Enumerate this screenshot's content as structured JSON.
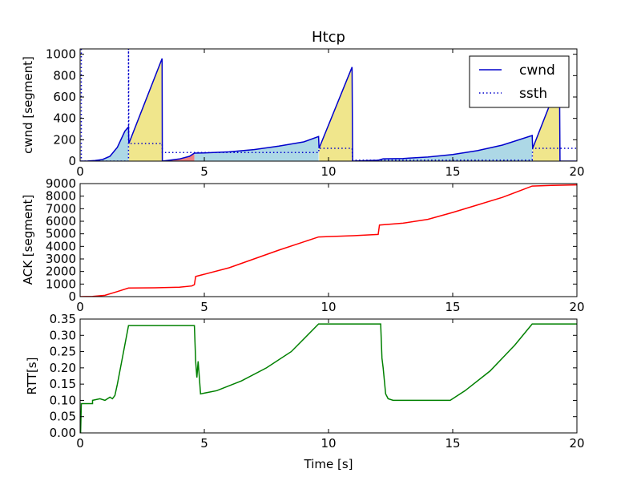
{
  "chart_data": [
    {
      "type": "line",
      "title": "Htcp",
      "ylabel": "cwnd [segment]",
      "xlabel": "",
      "xlim": [
        0,
        20
      ],
      "ylim": [
        0,
        1050
      ],
      "xticks": [
        0,
        5,
        10,
        15,
        20
      ],
      "yticks": [
        0,
        200,
        400,
        600,
        800,
        1000
      ],
      "legend": {
        "position": "top-right",
        "entries": [
          {
            "label": "cwnd",
            "style": "solid",
            "color": "#0000cc"
          },
          {
            "label": "ssth",
            "style": "dotted",
            "color": "#0000cc"
          }
        ]
      },
      "fills": [
        {
          "state": "congestion-avoidance",
          "color": "#add8e6"
        },
        {
          "state": "fast-recovery",
          "color": "#f0e68c"
        },
        {
          "state": "timeout",
          "color": "#f08080"
        }
      ],
      "series": [
        {
          "name": "cwnd",
          "color": "#0000cc",
          "points": [
            [
              0,
              0
            ],
            [
              0.3,
              1
            ],
            [
              0.6,
              5
            ],
            [
              0.9,
              15
            ],
            [
              1.2,
              45
            ],
            [
              1.5,
              130
            ],
            [
              1.8,
              280
            ],
            [
              1.95,
              320
            ],
            [
              1.96,
              165
            ],
            [
              3.3,
              960
            ],
            [
              3.31,
              0
            ],
            [
              3.5,
              5
            ],
            [
              4.0,
              20
            ],
            [
              4.4,
              45
            ],
            [
              4.6,
              75
            ],
            [
              5.0,
              77
            ],
            [
              6,
              87
            ],
            [
              7,
              108
            ],
            [
              8,
              140
            ],
            [
              9,
              180
            ],
            [
              9.6,
              230
            ],
            [
              9.62,
              120
            ],
            [
              10.95,
              880
            ],
            [
              10.97,
              0
            ],
            [
              12,
              8
            ],
            [
              12.2,
              22
            ],
            [
              13,
              25
            ],
            [
              14,
              38
            ],
            [
              15,
              62
            ],
            [
              16,
              98
            ],
            [
              17,
              150
            ],
            [
              18.2,
              240
            ],
            [
              18.22,
              120
            ],
            [
              19.3,
              760
            ],
            [
              19.32,
              0
            ],
            [
              20,
              0
            ]
          ]
        },
        {
          "name": "ssth",
          "color": "#0000cc",
          "points": [
            [
              0.05,
              1050
            ],
            [
              0.05,
              0
            ],
            [
              1.95,
              0
            ],
            [
              1.95,
              1050
            ],
            [
              1.96,
              165
            ],
            [
              3.3,
              165
            ],
            [
              3.31,
              80
            ],
            [
              9.6,
              80
            ],
            [
              9.62,
              120
            ],
            [
              10.95,
              120
            ],
            [
              10.97,
              10
            ],
            [
              18.2,
              10
            ],
            [
              18.22,
              120
            ],
            [
              20,
              120
            ]
          ]
        }
      ],
      "bands": [
        {
          "kind": "ca",
          "x0": 0,
          "x1": 1.95
        },
        {
          "kind": "fr",
          "x0": 1.96,
          "x1": 3.3
        },
        {
          "kind": "to",
          "x0": 3.31,
          "x1": 4.6
        },
        {
          "kind": "ca",
          "x0": 4.6,
          "x1": 9.6
        },
        {
          "kind": "fr",
          "x0": 9.62,
          "x1": 10.95
        },
        {
          "kind": "ca",
          "x0": 10.97,
          "x1": 18.2
        },
        {
          "kind": "fr",
          "x0": 18.22,
          "x1": 19.3
        }
      ]
    },
    {
      "type": "line",
      "title": "",
      "ylabel": "ACK [segment]",
      "xlabel": "",
      "xlim": [
        0,
        20
      ],
      "ylim": [
        0,
        9000
      ],
      "xticks": [
        0,
        5,
        10,
        15,
        20
      ],
      "yticks": [
        0,
        1000,
        2000,
        3000,
        4000,
        5000,
        6000,
        7000,
        8000,
        9000
      ],
      "series": [
        {
          "name": "ACK",
          "color": "#ff0000",
          "points": [
            [
              0,
              0
            ],
            [
              0.5,
              20
            ],
            [
              1.0,
              100
            ],
            [
              1.5,
              400
            ],
            [
              1.95,
              680
            ],
            [
              3.0,
              700
            ],
            [
              4.0,
              750
            ],
            [
              4.5,
              850
            ],
            [
              4.6,
              950
            ],
            [
              4.65,
              1600
            ],
            [
              6,
              2300
            ],
            [
              8,
              3700
            ],
            [
              9.6,
              4750
            ],
            [
              10,
              4780
            ],
            [
              11,
              4850
            ],
            [
              12.0,
              4950
            ],
            [
              12.05,
              5700
            ],
            [
              13,
              5850
            ],
            [
              14,
              6150
            ],
            [
              15,
              6700
            ],
            [
              16,
              7300
            ],
            [
              17,
              7900
            ],
            [
              18.2,
              8800
            ],
            [
              19,
              8850
            ],
            [
              20,
              8900
            ]
          ]
        }
      ]
    },
    {
      "type": "line",
      "title": "",
      "ylabel": "RTT[s]",
      "xlabel": "Time [s]",
      "xlim": [
        0,
        20
      ],
      "ylim": [
        0,
        0.35
      ],
      "xticks": [
        0,
        5,
        10,
        15,
        20
      ],
      "yticks": [
        0.0,
        0.05,
        0.1,
        0.15,
        0.2,
        0.25,
        0.3,
        0.35
      ],
      "series": [
        {
          "name": "RTT",
          "color": "#008000",
          "points": [
            [
              0.02,
              0
            ],
            [
              0.05,
              0.09
            ],
            [
              0.5,
              0.09
            ],
            [
              0.5,
              0.1
            ],
            [
              0.8,
              0.105
            ],
            [
              1.0,
              0.1
            ],
            [
              1.2,
              0.11
            ],
            [
              1.3,
              0.105
            ],
            [
              1.4,
              0.115
            ],
            [
              1.5,
              0.15
            ],
            [
              1.95,
              0.33
            ],
            [
              4.6,
              0.33
            ],
            [
              4.65,
              0.22
            ],
            [
              4.7,
              0.17
            ],
            [
              4.75,
              0.22
            ],
            [
              4.85,
              0.12
            ],
            [
              5.5,
              0.13
            ],
            [
              6.5,
              0.16
            ],
            [
              7.5,
              0.2
            ],
            [
              8.5,
              0.25
            ],
            [
              9.6,
              0.335
            ],
            [
              12.1,
              0.335
            ],
            [
              12.15,
              0.23
            ],
            [
              12.2,
              0.2
            ],
            [
              12.3,
              0.12
            ],
            [
              12.4,
              0.105
            ],
            [
              12.6,
              0.1
            ],
            [
              13,
              0.1
            ],
            [
              14,
              0.1
            ],
            [
              14.9,
              0.1
            ],
            [
              15.5,
              0.13
            ],
            [
              16.5,
              0.19
            ],
            [
              17.5,
              0.27
            ],
            [
              18.2,
              0.335
            ],
            [
              20,
              0.335
            ]
          ]
        }
      ]
    }
  ]
}
